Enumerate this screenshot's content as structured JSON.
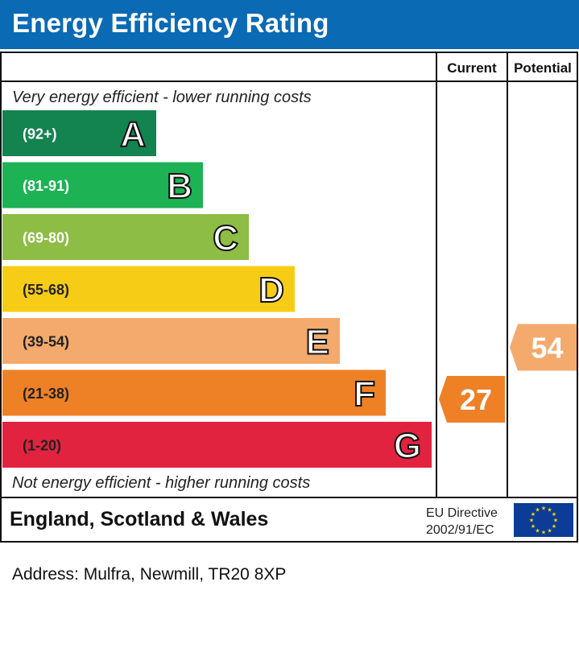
{
  "title": "Energy Efficiency Rating",
  "columns": {
    "current": "Current",
    "potential": "Potential"
  },
  "top_caption": "Very energy efficient - lower running costs",
  "bottom_caption": "Not energy efficient - higher running costs",
  "footer": {
    "region": "England, Scotland & Wales",
    "directive_line1": "EU Directive",
    "directive_line2": "2002/91/EC"
  },
  "address": "Address: Mulfra, Newmill, TR20 8XP",
  "chart_data": {
    "type": "bar",
    "categories": [
      "A",
      "B",
      "C",
      "D",
      "E",
      "F",
      "G"
    ],
    "ranges": [
      "(92+)",
      "(81-91)",
      "(69-80)",
      "(55-68)",
      "(39-54)",
      "(21-38)",
      "(1-20)"
    ],
    "colors": [
      "#138350",
      "#1db254",
      "#8dbd44",
      "#f7cc17",
      "#f3aa6c",
      "#ee8026",
      "#e1233f"
    ],
    "current": {
      "value": 27,
      "band": "F",
      "color": "#ee8026"
    },
    "potential": {
      "value": 54,
      "band": "E",
      "color": "#f3aa6c"
    }
  }
}
